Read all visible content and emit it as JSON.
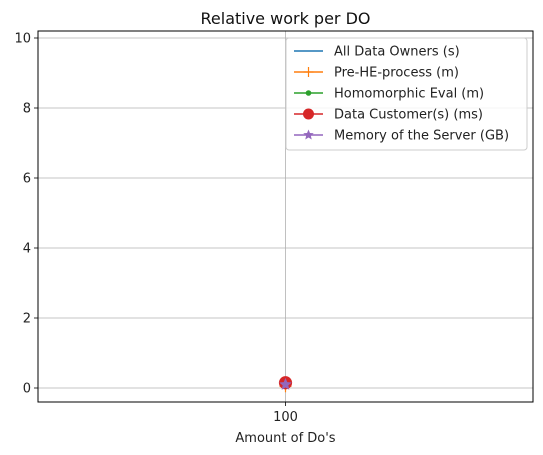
{
  "chart_data": {
    "type": "line",
    "title": "Relative work per DO",
    "xlabel": "Amount of Do's",
    "ylabel": "",
    "categories": [
      "100"
    ],
    "ylim": [
      -0.4,
      10.2
    ],
    "yticks": [
      0,
      2,
      4,
      6,
      8,
      10
    ],
    "grid": true,
    "legend_position": "top-right",
    "series": [
      {
        "name": "All Data Owners (s)",
        "values": [
          0.1
        ],
        "color": "#1f77b4",
        "marker": "none"
      },
      {
        "name": "Pre-HE-process (m)",
        "values": [
          0.05
        ],
        "color": "#ff7f0e",
        "marker": "plus"
      },
      {
        "name": "Homomorphic Eval (m)",
        "values": [
          0.08
        ],
        "color": "#2ca02c",
        "marker": "point"
      },
      {
        "name": "Data Customer(s) (ms)",
        "values": [
          0.15
        ],
        "color": "#d62728",
        "marker": "circle"
      },
      {
        "name": "Memory of the Server (GB)",
        "values": [
          0.1
        ],
        "color": "#9467bd",
        "marker": "star"
      }
    ]
  }
}
